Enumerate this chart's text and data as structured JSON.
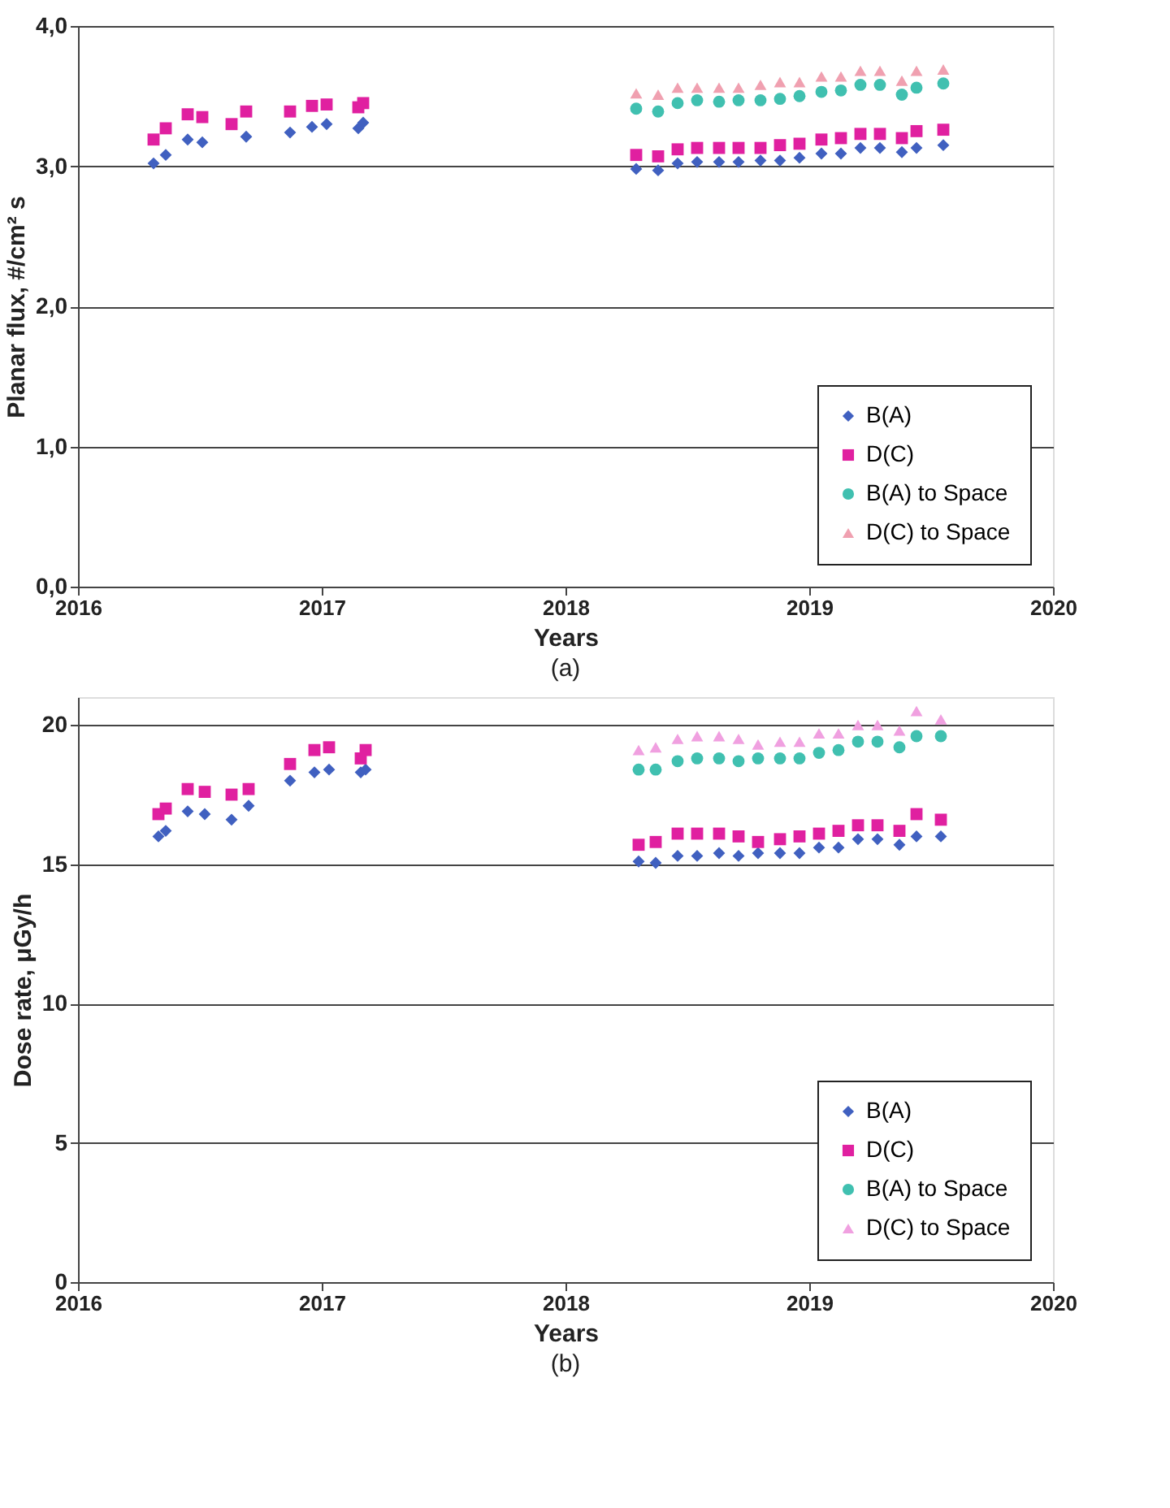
{
  "chart_data": [
    {
      "type": "scatter",
      "xlabel": "Years",
      "ylabel": "Planar flux, #/cm² s",
      "annotations": [
        "(a)"
      ],
      "xlim": [
        2016,
        2020
      ],
      "xticks": [
        2016,
        2017,
        2018,
        2019,
        2020
      ],
      "ylim": [
        0,
        4
      ],
      "yticks": [
        {
          "value": 0,
          "label": "0,0"
        },
        {
          "value": 1,
          "label": "1,0"
        },
        {
          "value": 2,
          "label": "2,0"
        },
        {
          "value": 3,
          "label": "3,0"
        },
        {
          "value": 4,
          "label": "4,0"
        }
      ],
      "grid": "y",
      "legend": "bottom right",
      "series": [
        {
          "name": "B(A)",
          "color": "#4060c0",
          "marker": "diamond",
          "x": [
            2016.31,
            2016.36,
            2016.45,
            2016.51,
            2016.69,
            2016.87,
            2016.96,
            2017.02,
            2017.15,
            2017.17,
            2018.29,
            2018.38,
            2018.46,
            2018.54,
            2018.63,
            2018.71,
            2018.8,
            2018.88,
            2018.96,
            2019.05,
            2019.13,
            2019.21,
            2019.29,
            2019.38,
            2019.44,
            2019.55
          ],
          "values": [
            3.02,
            3.08,
            3.19,
            3.17,
            3.21,
            3.24,
            3.28,
            3.3,
            3.27,
            3.31,
            2.98,
            2.97,
            3.02,
            3.03,
            3.03,
            3.03,
            3.04,
            3.04,
            3.06,
            3.09,
            3.09,
            3.13,
            3.13,
            3.1,
            3.13,
            3.15
          ]
        },
        {
          "name": "D(C)",
          "color": "#e020a0",
          "marker": "square",
          "x": [
            2016.31,
            2016.36,
            2016.45,
            2016.51,
            2016.63,
            2016.69,
            2016.87,
            2016.96,
            2017.02,
            2017.15,
            2017.17,
            2018.29,
            2018.38,
            2018.46,
            2018.54,
            2018.63,
            2018.71,
            2018.8,
            2018.88,
            2018.96,
            2019.05,
            2019.13,
            2019.21,
            2019.29,
            2019.38,
            2019.44,
            2019.55
          ],
          "values": [
            3.19,
            3.27,
            3.37,
            3.35,
            3.3,
            3.39,
            3.39,
            3.43,
            3.44,
            3.42,
            3.45,
            3.08,
            3.07,
            3.12,
            3.13,
            3.13,
            3.13,
            3.13,
            3.15,
            3.16,
            3.19,
            3.2,
            3.23,
            3.23,
            3.2,
            3.25,
            3.26
          ]
        },
        {
          "name": "B(A) to Space",
          "color": "#40c0b0",
          "marker": "circle",
          "x": [
            2018.29,
            2018.38,
            2018.46,
            2018.54,
            2018.63,
            2018.71,
            2018.8,
            2018.88,
            2018.96,
            2019.05,
            2019.13,
            2019.21,
            2019.29,
            2019.38,
            2019.44,
            2019.55
          ],
          "values": [
            3.41,
            3.39,
            3.45,
            3.47,
            3.46,
            3.47,
            3.47,
            3.48,
            3.5,
            3.53,
            3.54,
            3.58,
            3.58,
            3.51,
            3.56,
            3.59
          ]
        },
        {
          "name": "D(C) to Space",
          "color": "#f0a0b0",
          "marker": "triangle",
          "x": [
            2018.29,
            2018.38,
            2018.46,
            2018.54,
            2018.63,
            2018.71,
            2018.8,
            2018.88,
            2018.96,
            2019.05,
            2019.13,
            2019.21,
            2019.29,
            2019.38,
            2019.44,
            2019.55
          ],
          "values": [
            3.52,
            3.51,
            3.56,
            3.56,
            3.56,
            3.56,
            3.58,
            3.6,
            3.6,
            3.64,
            3.64,
            3.68,
            3.68,
            3.61,
            3.68,
            3.69
          ]
        }
      ]
    },
    {
      "type": "scatter",
      "xlabel": "Years",
      "ylabel": "Dose rate, μGy/h",
      "annotations": [
        "(b)"
      ],
      "xlim": [
        2016,
        2020
      ],
      "xticks": [
        2016,
        2017,
        2018,
        2019,
        2020
      ],
      "ylim": [
        0,
        21
      ],
      "yticks": [
        0,
        5,
        10,
        15,
        20
      ],
      "grid": "y",
      "legend": "bottom right",
      "series": [
        {
          "name": "B(A)",
          "color": "#4060c0",
          "marker": "diamond",
          "x": [
            2016.33,
            2016.36,
            2016.45,
            2016.52,
            2016.63,
            2016.7,
            2016.87,
            2016.97,
            2017.03,
            2017.16,
            2017.18,
            2018.3,
            2018.37,
            2018.46,
            2018.54,
            2018.63,
            2018.71,
            2018.79,
            2018.88,
            2018.96,
            2019.04,
            2019.12,
            2019.2,
            2019.28,
            2019.37,
            2019.44,
            2019.54
          ],
          "values": [
            16.0,
            16.2,
            16.9,
            16.8,
            16.6,
            17.1,
            18.0,
            18.3,
            18.4,
            18.3,
            18.4,
            15.1,
            15.05,
            15.3,
            15.3,
            15.4,
            15.3,
            15.4,
            15.4,
            15.4,
            15.6,
            15.6,
            15.9,
            15.9,
            15.7,
            16.0,
            16.0
          ]
        },
        {
          "name": "D(C)",
          "color": "#e020a0",
          "marker": "square",
          "x": [
            2016.33,
            2016.36,
            2016.45,
            2016.52,
            2016.63,
            2016.7,
            2016.87,
            2016.97,
            2017.03,
            2017.16,
            2017.18,
            2018.3,
            2018.37,
            2018.46,
            2018.54,
            2018.63,
            2018.71,
            2018.79,
            2018.88,
            2018.96,
            2019.04,
            2019.12,
            2019.2,
            2019.28,
            2019.37,
            2019.44,
            2019.54
          ],
          "values": [
            16.8,
            17.0,
            17.7,
            17.6,
            17.5,
            17.7,
            18.6,
            19.1,
            19.2,
            18.8,
            19.1,
            15.7,
            15.8,
            16.1,
            16.1,
            16.1,
            16.0,
            15.8,
            15.9,
            16.0,
            16.1,
            16.2,
            16.4,
            16.4,
            16.2,
            16.8,
            16.6
          ]
        },
        {
          "name": "B(A) to Space",
          "color": "#40c0b0",
          "marker": "circle",
          "x": [
            2018.3,
            2018.37,
            2018.46,
            2018.54,
            2018.63,
            2018.71,
            2018.79,
            2018.88,
            2018.96,
            2019.04,
            2019.12,
            2019.2,
            2019.28,
            2019.37,
            2019.44,
            2019.54
          ],
          "values": [
            18.4,
            18.4,
            18.7,
            18.8,
            18.8,
            18.7,
            18.8,
            18.8,
            18.8,
            19.0,
            19.1,
            19.4,
            19.4,
            19.2,
            19.6,
            19.6
          ]
        },
        {
          "name": "D(C) to Space",
          "color": "#f0a0e0",
          "marker": "triangle",
          "x": [
            2018.3,
            2018.37,
            2018.46,
            2018.54,
            2018.63,
            2018.71,
            2018.79,
            2018.88,
            2018.96,
            2019.04,
            2019.12,
            2019.2,
            2019.28,
            2019.37,
            2019.44,
            2019.54
          ],
          "values": [
            19.1,
            19.2,
            19.5,
            19.6,
            19.6,
            19.5,
            19.3,
            19.4,
            19.4,
            19.7,
            19.7,
            20.0,
            20.0,
            19.8,
            20.5,
            20.2
          ]
        }
      ]
    }
  ]
}
